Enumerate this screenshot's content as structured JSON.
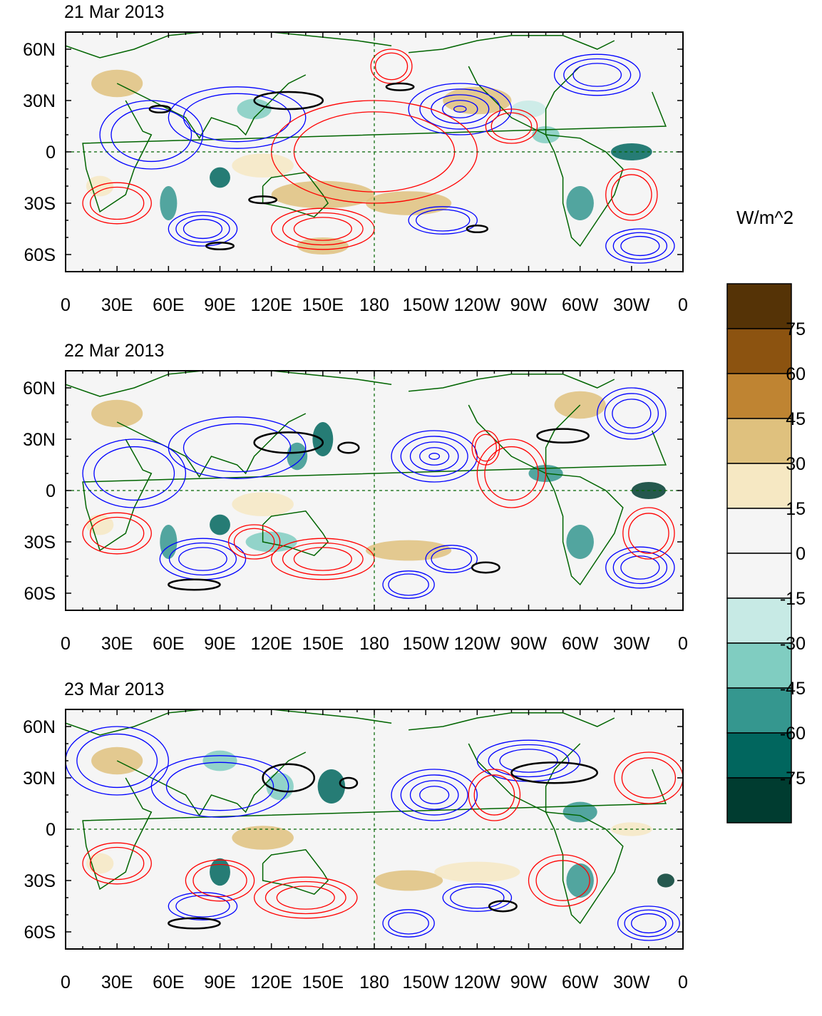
{
  "panels": [
    {
      "date": "21 Mar 2013"
    },
    {
      "date": "22 Mar 2013"
    },
    {
      "date": "23 Mar 2013"
    }
  ],
  "axes": {
    "lon_labels": [
      "0",
      "30E",
      "60E",
      "90E",
      "120E",
      "150E",
      "180",
      "150W",
      "120W",
      "90W",
      "60W",
      "30W",
      "0"
    ],
    "lat_labels": [
      "60N",
      "30N",
      "0",
      "30S",
      "60S"
    ],
    "lon_range": [
      0,
      360
    ],
    "lat_range": [
      -70,
      70
    ]
  },
  "colorbar": {
    "units": "W/m^2",
    "levels": [
      "75",
      "60",
      "45",
      "30",
      "15",
      "0",
      "-15",
      "-30",
      "-45",
      "-60",
      "-75"
    ],
    "colors": [
      "#553306",
      "#8c5310",
      "#bf8432",
      "#dfc17e",
      "#f6e8c3",
      "#f5f5f5",
      "#f5f5f5",
      "#c7eae5",
      "#80cdc1",
      "#35978f",
      "#01665e",
      "#003c30"
    ]
  },
  "contour_colors": {
    "positive": "#ff0000",
    "negative": "#0000ff",
    "highlight": "#000000",
    "coastline": "#006400"
  }
}
